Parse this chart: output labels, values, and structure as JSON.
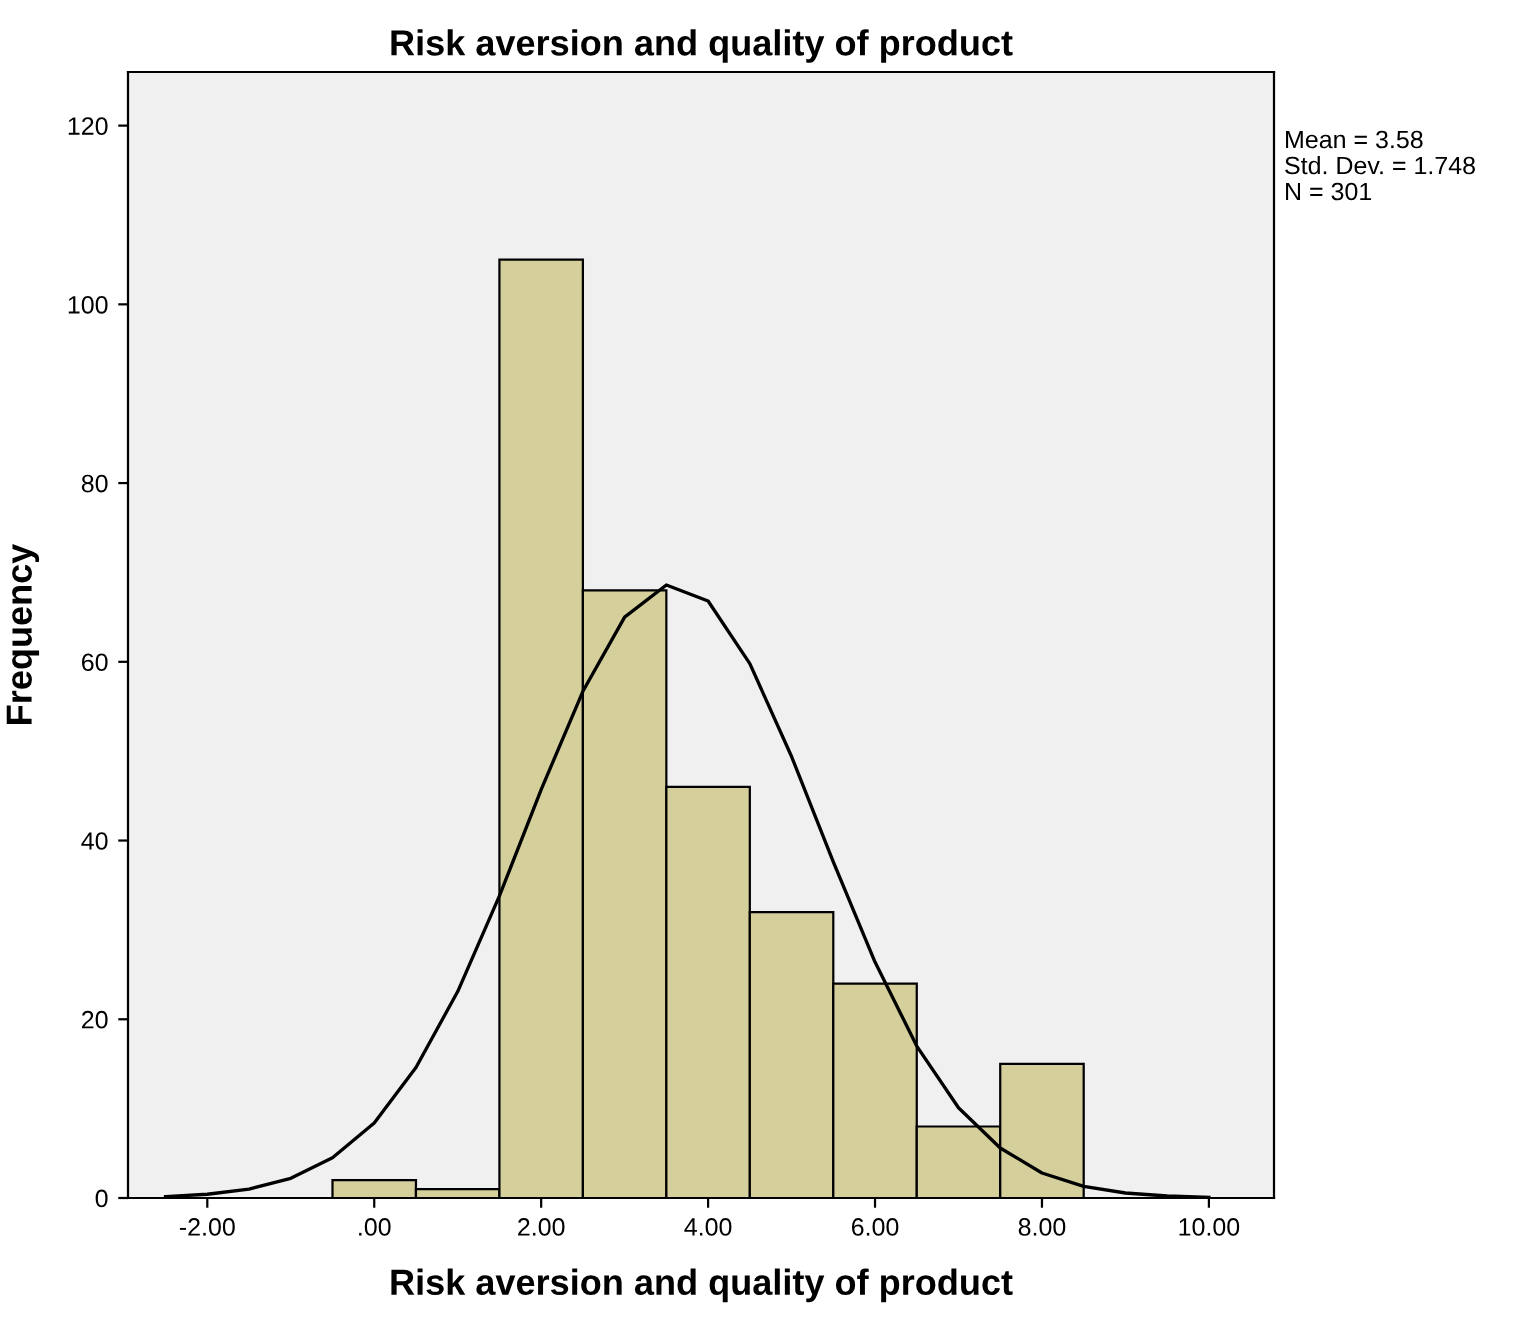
{
  "chart_data": {
    "type": "histogram",
    "title": "Risk aversion and quality of product",
    "xlabel": "Risk aversion and quality of product",
    "ylabel": "Frequency",
    "bins": [
      -0.5,
      0.5,
      1.5,
      2.5,
      3.5,
      4.5,
      5.5,
      6.5,
      7.5,
      8.5
    ],
    "values": [
      2,
      1,
      105,
      68,
      46,
      32,
      24,
      8,
      15
    ],
    "color": "#d4cf9b",
    "series": [
      {
        "type": "line",
        "color": "#000000",
        "x": [
          -2.5,
          -2,
          -1.5,
          -1,
          -0.5,
          0,
          0.5,
          1,
          1.5,
          2,
          2.5,
          3,
          3.5,
          4,
          4.5,
          5,
          5.5,
          6,
          6.5,
          7,
          7.5,
          8,
          8.5,
          9,
          9.5,
          10
        ],
        "values": [
          0.16,
          0.42,
          1.0,
          2.2,
          4.5,
          8.4,
          14.6,
          23.1,
          33.8,
          45.7,
          56.7,
          65.0,
          68.6,
          66.8,
          59.8,
          49.4,
          37.6,
          26.4,
          17.0,
          10.1,
          5.6,
          2.8,
          1.3,
          0.56,
          0.22,
          0.08
        ]
      }
    ],
    "xlim": [
      -2.95,
      10.78
    ],
    "ylim": [
      0,
      126
    ],
    "xticks": [
      {
        "value": -2,
        "label": "-2.00"
      },
      {
        "value": 0,
        "label": ".00"
      },
      {
        "value": 2,
        "label": "2.00"
      },
      {
        "value": 4,
        "label": "4.00"
      },
      {
        "value": 6,
        "label": "6.00"
      },
      {
        "value": 8,
        "label": "8.00"
      },
      {
        "value": 10,
        "label": "10.00"
      }
    ],
    "yticks": [
      0,
      20,
      40,
      60,
      80,
      100,
      120
    ],
    "annotations": [
      "Mean = 3.58",
      "Std. Dev. = 1.748",
      "N = 301"
    ]
  }
}
